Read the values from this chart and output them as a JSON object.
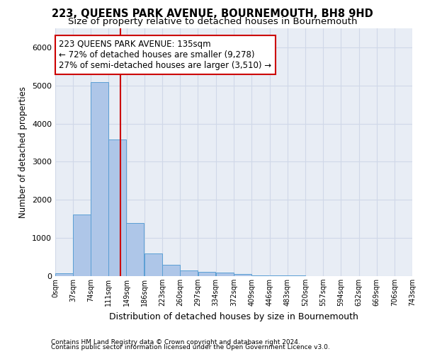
{
  "title": "223, QUEENS PARK AVENUE, BOURNEMOUTH, BH8 9HD",
  "subtitle": "Size of property relative to detached houses in Bournemouth",
  "xlabel": "Distribution of detached houses by size in Bournemouth",
  "ylabel": "Number of detached properties",
  "footnote1": "Contains HM Land Registry data © Crown copyright and database right 2024.",
  "footnote2": "Contains public sector information licensed under the Open Government Licence v3.0.",
  "bar_left_edges": [
    0,
    37,
    74,
    111,
    148,
    186,
    223,
    260,
    297,
    334,
    372,
    409,
    446,
    483,
    520,
    557,
    594,
    632,
    669,
    706
  ],
  "bar_heights": [
    70,
    1620,
    5080,
    3580,
    1400,
    590,
    290,
    155,
    115,
    90,
    50,
    20,
    15,
    10,
    5,
    5,
    3,
    3,
    2,
    2
  ],
  "bin_width": 37,
  "bar_color": "#aec6e8",
  "bar_edge_color": "#5a9fd4",
  "property_size": 135,
  "vline_color": "#cc0000",
  "annotation_text": "223 QUEENS PARK AVENUE: 135sqm\n← 72% of detached houses are smaller (9,278)\n27% of semi-detached houses are larger (3,510) →",
  "annotation_box_color": "#ffffff",
  "annotation_box_edge": "#cc0000",
  "ylim": [
    0,
    6500
  ],
  "xlim": [
    0,
    743
  ],
  "tick_positions": [
    0,
    37,
    74,
    111,
    149,
    186,
    223,
    260,
    297,
    334,
    372,
    409,
    446,
    483,
    520,
    557,
    594,
    632,
    669,
    706,
    743
  ],
  "tick_labels": [
    "0sqm",
    "37sqm",
    "74sqm",
    "111sqm",
    "149sqm",
    "186sqm",
    "223sqm",
    "260sqm",
    "297sqm",
    "334sqm",
    "372sqm",
    "409sqm",
    "446sqm",
    "483sqm",
    "520sqm",
    "557sqm",
    "594sqm",
    "632sqm",
    "669sqm",
    "706sqm",
    "743sqm"
  ],
  "grid_color": "#d0d8e8",
  "bg_color": "#e8edf5",
  "title_fontsize": 10.5,
  "subtitle_fontsize": 9.5,
  "annotation_fontsize": 8.5
}
